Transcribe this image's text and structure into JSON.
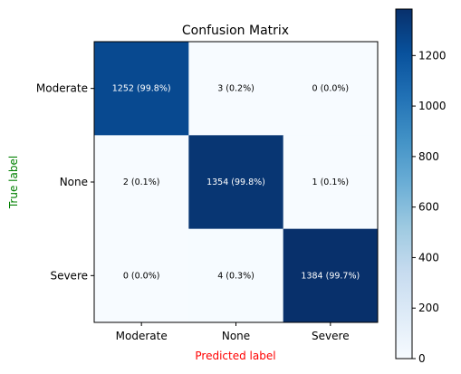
{
  "chart_data": {
    "type": "heatmap",
    "title": "Confusion Matrix",
    "xlabel": "Predicted label",
    "ylabel": "True label",
    "xlabel_color": "#ff0000",
    "ylabel_color": "#008000",
    "x_categories": [
      "Moderate",
      "None",
      "Severe"
    ],
    "y_categories": [
      "Moderate",
      "None",
      "Severe"
    ],
    "values": [
      [
        1252,
        3,
        0
      ],
      [
        2,
        1354,
        1
      ],
      [
        0,
        4,
        1384
      ]
    ],
    "cell_labels": [
      [
        "1252 (99.8%)",
        "3 (0.2%)",
        "0 (0.0%)"
      ],
      [
        "2 (0.1%)",
        "1354 (99.8%)",
        "1 (0.1%)"
      ],
      [
        "0 (0.0%)",
        "4 (0.3%)",
        "1384 (99.7%)"
      ]
    ],
    "colormap": "Blues",
    "colorbar": {
      "range": [
        0,
        1384
      ],
      "ticks": [
        0,
        200,
        400,
        600,
        800,
        1000,
        1200
      ],
      "tick_labels": [
        "0",
        "200",
        "400",
        "600",
        "800",
        "1000",
        "1200"
      ]
    },
    "grid": false
  }
}
